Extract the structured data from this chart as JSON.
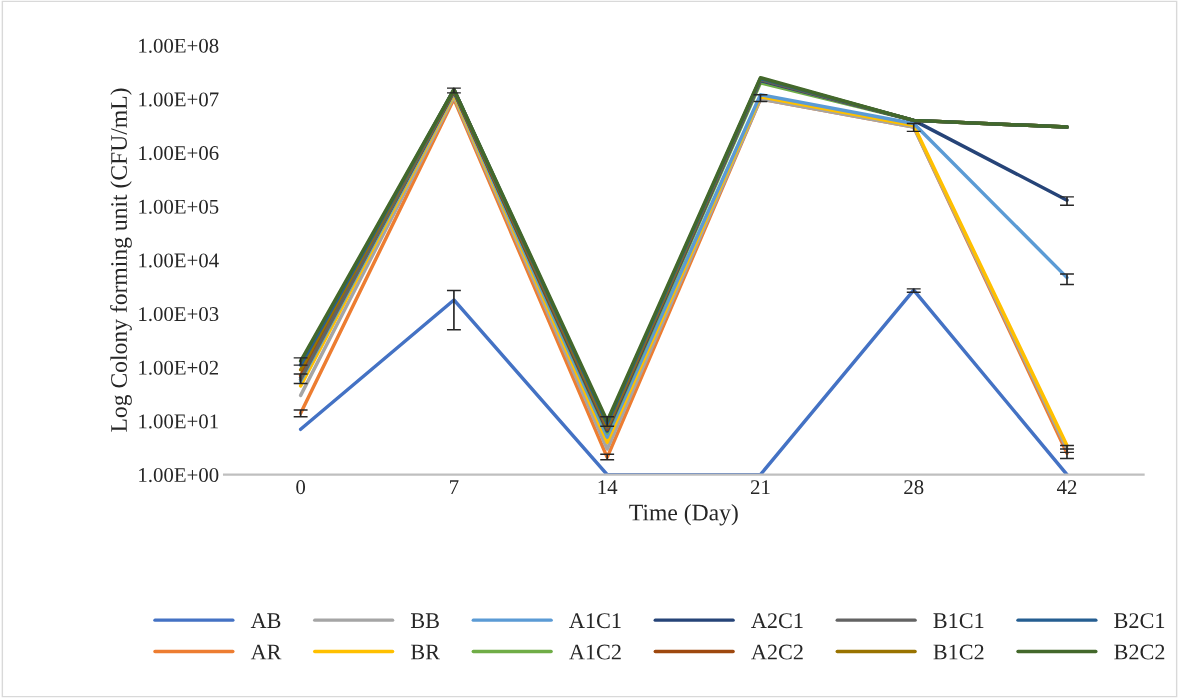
{
  "chart_data": {
    "type": "line",
    "xlabel": "Time (Day)",
    "ylabel": "Log Colony forming unit (CFU/mL)",
    "categories": [
      "0",
      "7",
      "14",
      "21",
      "28",
      "42"
    ],
    "log": "y",
    "ylim": [
      1,
      100000000
    ],
    "yticks": [
      {
        "value": 1,
        "label": "1.00E+00"
      },
      {
        "value": 10,
        "label": "1.00E+01"
      },
      {
        "value": 100,
        "label": "1.00E+02"
      },
      {
        "value": 1000,
        "label": "1.00E+03"
      },
      {
        "value": 10000,
        "label": "1.00E+04"
      },
      {
        "value": 100000,
        "label": "1.00E+05"
      },
      {
        "value": 1000000,
        "label": "1.00E+06"
      },
      {
        "value": 10000000,
        "label": "1.00E+07"
      },
      {
        "value": 100000000,
        "label": "1.00E+08"
      }
    ],
    "grid": false,
    "legend": "bottom",
    "marker": "none",
    "line_style": "solid",
    "series": [
      {
        "name": "AB",
        "color": "#4472c4",
        "values": [
          7,
          1800,
          1,
          1,
          2750,
          1
        ],
        "errors": [
          null,
          [
            500,
            2700
          ],
          null,
          null,
          [
            2500,
            2900
          ],
          null
        ]
      },
      {
        "name": "AR",
        "color": "#ed7d31",
        "values": [
          14,
          10000000,
          2.1,
          10000000,
          3000000,
          2.5
        ],
        "errors": [
          [
            12,
            16
          ],
          null,
          [
            1.9,
            2.4
          ],
          null,
          null,
          [
            2,
            3
          ]
        ]
      },
      {
        "name": "BB",
        "color": "#a5a5a5",
        "values": [
          30,
          11000000,
          3,
          10000000,
          3000000,
          3
        ],
        "errors": [
          null,
          null,
          null,
          [
            9000000,
            12000000
          ],
          [
            2500000,
            3500000
          ],
          [
            2.6,
            3.5
          ]
        ]
      },
      {
        "name": "BR",
        "color": "#ffc000",
        "values": [
          45,
          12000000,
          4,
          11000000,
          3200000,
          3.5
        ]
      },
      {
        "name": "A1C1",
        "color": "#5b9bd5",
        "values": [
          55,
          13000000,
          5,
          12000000,
          3500000,
          4700
        ],
        "errors": [
          null,
          null,
          null,
          null,
          null,
          [
            3500,
            5500
          ]
        ]
      },
      {
        "name": "A1C2",
        "color": "#70ad47",
        "values": [
          60,
          14000000,
          6,
          20000000,
          4000000,
          3000000
        ]
      },
      {
        "name": "A2C1",
        "color": "#264478",
        "values": [
          65,
          14000000,
          6.5,
          22000000,
          4000000,
          130000
        ],
        "errors": [
          null,
          null,
          null,
          null,
          null,
          [
            105000,
            150000
          ]
        ]
      },
      {
        "name": "A2C2",
        "color": "#9e480e",
        "values": [
          70,
          14000000,
          7,
          23000000,
          4000000,
          3000000
        ]
      },
      {
        "name": "B1C1",
        "color": "#636363",
        "values": [
          60,
          15000000,
          7.5,
          23000000,
          4000000,
          3000000
        ],
        "errors": [
          [
            50,
            75
          ],
          null,
          null,
          null,
          null,
          null
        ]
      },
      {
        "name": "B1C2",
        "color": "#997300",
        "values": [
          90,
          15000000,
          8,
          24000000,
          4000000,
          3000000
        ]
      },
      {
        "name": "B2C1",
        "color": "#255e91",
        "values": [
          110,
          15000000,
          9,
          24000000,
          4000000,
          3000000
        ]
      },
      {
        "name": "B2C2",
        "color": "#43682b",
        "values": [
          130,
          15000000,
          10,
          25000000,
          4000000,
          3000000
        ],
        "errors": [
          [
            110,
            150
          ],
          [
            13000000,
            16000000
          ],
          [
            8,
            12
          ],
          null,
          null,
          null
        ]
      }
    ]
  }
}
